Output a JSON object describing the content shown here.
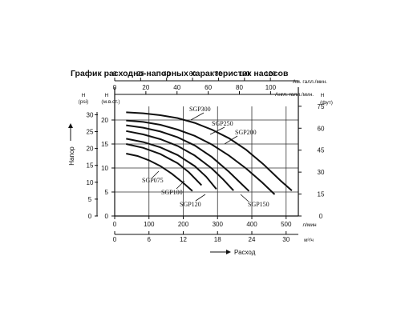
{
  "title": "График расходно-напорных характеристик насосов",
  "colors": {
    "line": "#111111",
    "grid": "#333333",
    "background": "#ffffff"
  },
  "chart_data": {
    "type": "line",
    "axes": {
      "bottom_flow_m3h": {
        "min": 0,
        "max": 33,
        "ticks": [
          0,
          6,
          12,
          18,
          24,
          30
        ],
        "unit": "м³/ч",
        "label": "Расход"
      },
      "bottom_flow_lpm": {
        "ticks": [
          0,
          100,
          200,
          300,
          400,
          500
        ],
        "unit": "л/мин"
      },
      "top_flow_usgpm": {
        "ticks": [
          0,
          20,
          40,
          60,
          80,
          100,
          120
        ],
        "unit": "Ам. галл./мин."
      },
      "top_flow_ukgpm": {
        "ticks": [
          0,
          20,
          40,
          60,
          80,
          100
        ],
        "unit": "Англ. галл./мин."
      },
      "left_head_m": {
        "min": 0,
        "max": 22,
        "ticks": [
          0,
          5,
          10,
          15,
          20
        ],
        "unit_h": "H",
        "unit": "(м.в.ст.)"
      },
      "left_head_psi": {
        "ticks": [
          0,
          5,
          10,
          15,
          20,
          25,
          30
        ],
        "unit_h": "H",
        "unit": "(psi)"
      },
      "right_head_ft": {
        "ticks": [
          0,
          15,
          30,
          45,
          60,
          75
        ],
        "unit_h": "H",
        "unit": "(фут)"
      },
      "ylabel": "Напор"
    },
    "grid": true,
    "series": [
      {
        "name": "SGP300",
        "x": [
          2,
          5,
          8,
          11,
          14,
          17,
          20,
          23,
          26,
          29,
          31
        ],
        "y": [
          21.6,
          21.4,
          21.0,
          20.4,
          19.4,
          18.0,
          16.2,
          13.8,
          10.8,
          7.4,
          5.3
        ]
      },
      {
        "name": "SGP250",
        "x": [
          2,
          5,
          8,
          11,
          14,
          17,
          20,
          23,
          25.8,
          28
        ],
        "y": [
          19.9,
          19.6,
          19.0,
          18.0,
          16.7,
          14.9,
          12.6,
          9.9,
          7.0,
          4.5
        ]
      },
      {
        "name": "SGP200",
        "x": [
          2,
          5,
          8,
          11,
          14,
          17,
          20,
          22,
          23.5
        ],
        "y": [
          18.9,
          18.4,
          17.6,
          16.4,
          14.7,
          12.3,
          9.2,
          6.9,
          5.2
        ]
      },
      {
        "name": "SGP150",
        "x": [
          2,
          5,
          8,
          11,
          14,
          17,
          19,
          20.8
        ],
        "y": [
          17.7,
          17.0,
          16.0,
          14.6,
          12.6,
          9.9,
          7.6,
          5.3
        ]
      },
      {
        "name": "SGP120",
        "x": [
          2,
          5,
          8,
          11,
          14,
          16,
          17.8
        ],
        "y": [
          16.1,
          15.4,
          14.3,
          12.7,
          10.4,
          8.2,
          5.6
        ]
      },
      {
        "name": "SGP100",
        "x": [
          2,
          5,
          8,
          11,
          13,
          15.2
        ],
        "y": [
          15.0,
          14.2,
          12.9,
          11.0,
          9.1,
          6.4
        ]
      },
      {
        "name": "SGP075",
        "x": [
          2,
          4,
          6,
          8,
          10,
          12,
          13.6
        ],
        "y": [
          13.0,
          12.5,
          11.6,
          10.4,
          8.8,
          6.9,
          5.2
        ]
      }
    ],
    "curve_labels": [
      "SGP300",
      "SGP250",
      "SGP200",
      "SGP075",
      "SGP100",
      "SGP120",
      "SGP150"
    ]
  }
}
